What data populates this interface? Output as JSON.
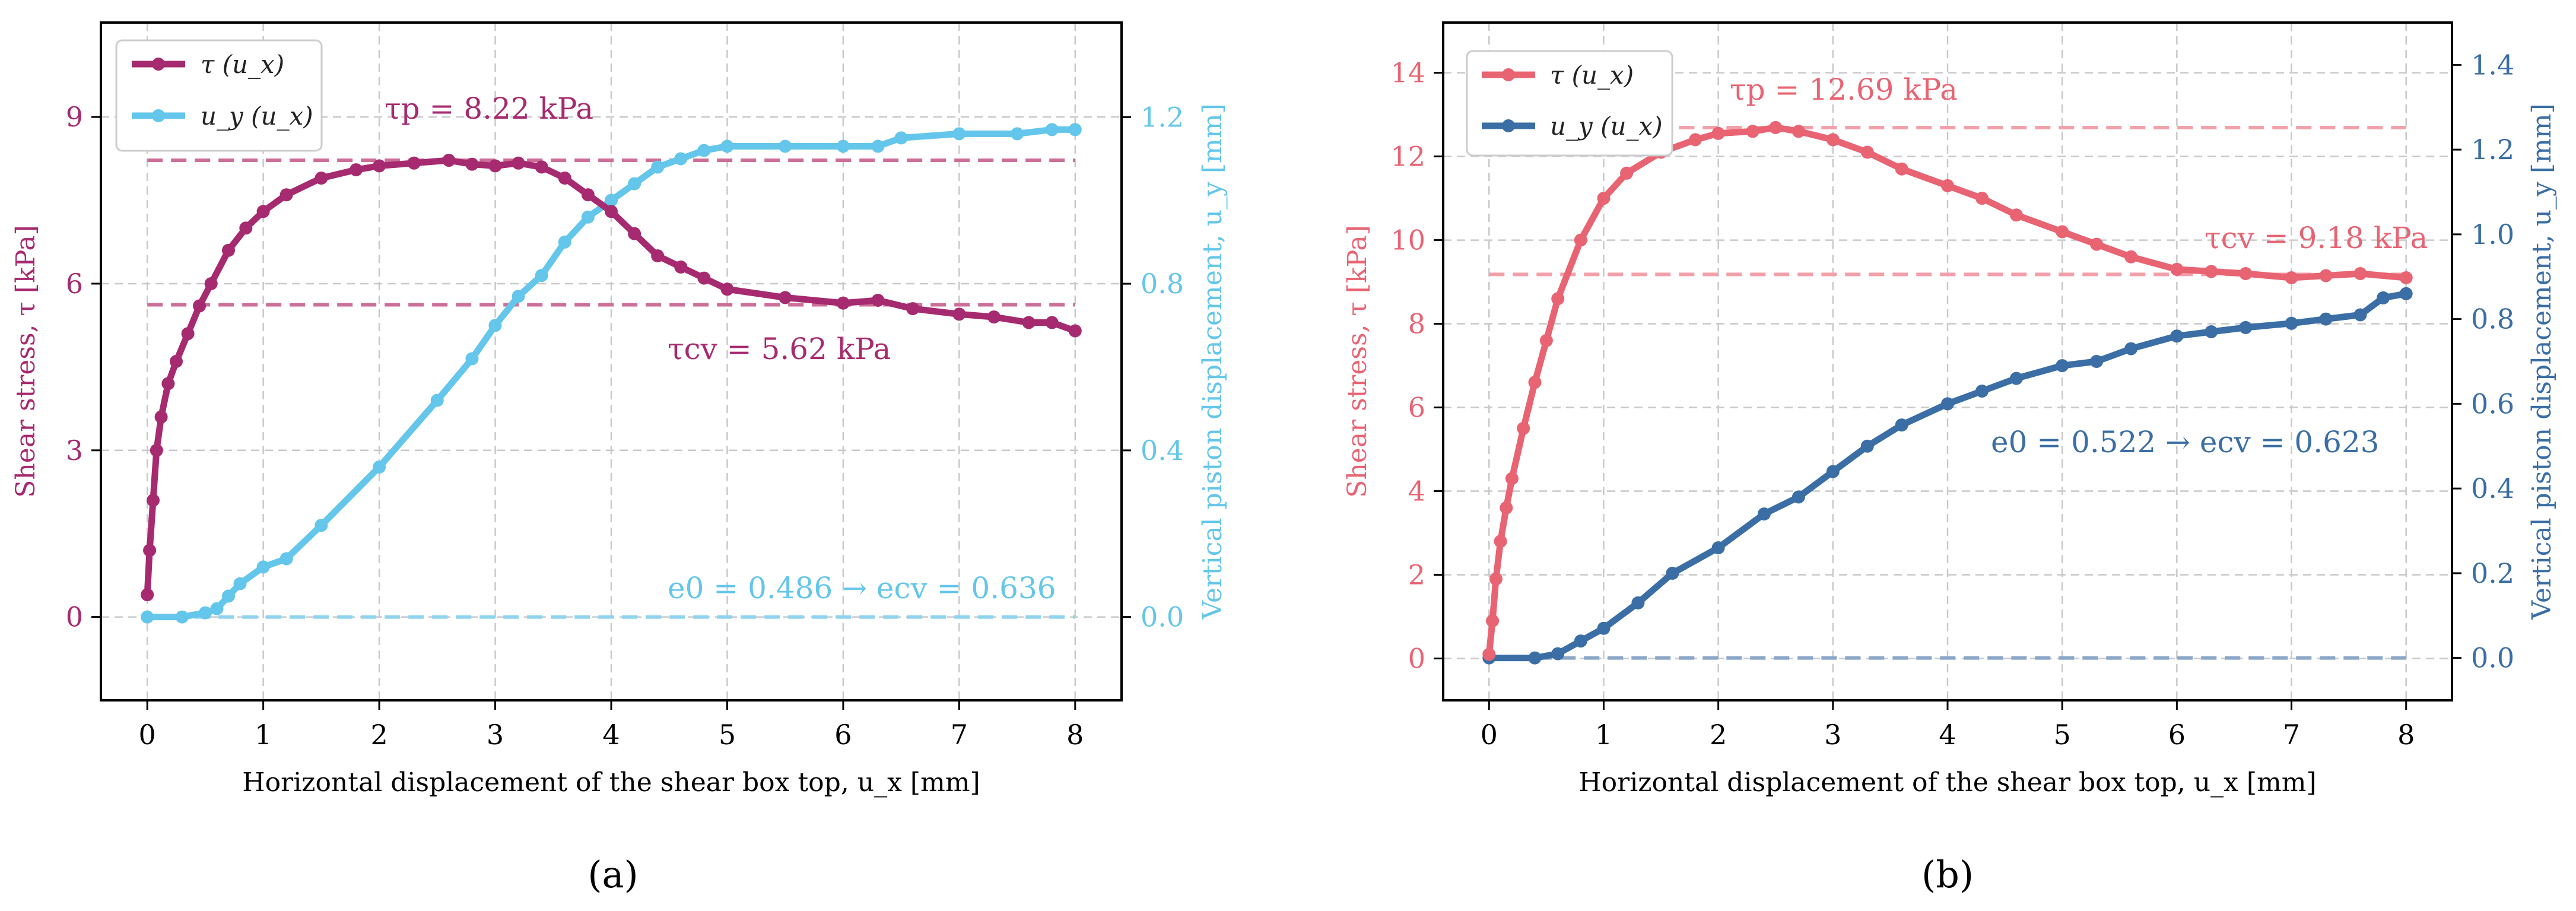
{
  "panel_captions": [
    "(a)",
    "(b)"
  ],
  "chart_data": [
    {
      "type": "line",
      "xlabel": "Horizontal displacement of the shear box top, u_x [mm]",
      "ylabel_left": "Shear stress, τ [kPa]",
      "ylabel_right": "Vertical piston displacement, u_y [mm]",
      "xlim": [
        -0.4,
        8.4
      ],
      "ylim_left": [
        -1.5,
        10.7
      ],
      "ylim_right": [
        -0.2,
        1.427
      ],
      "xticks": [
        0,
        1,
        2,
        3,
        4,
        5,
        6,
        7,
        8
      ],
      "yticks_left": [
        0,
        3,
        6,
        9
      ],
      "yticks_right": [
        0.0,
        0.4,
        0.8,
        1.2
      ],
      "ytick_labels_right": [
        "0.0",
        "0.4",
        "0.8",
        "1.2"
      ],
      "grid": true,
      "legend_position": "top-left",
      "colors": {
        "tau": "#a62a6f",
        "uy": "#63c6ea"
      },
      "series": [
        {
          "name": "τ (u_x)",
          "axis": "left",
          "x": [
            0,
            0.02,
            0.05,
            0.08,
            0.12,
            0.18,
            0.25,
            0.35,
            0.45,
            0.55,
            0.7,
            0.85,
            1.0,
            1.2,
            1.5,
            1.8,
            2.0,
            2.3,
            2.6,
            2.8,
            3.0,
            3.2,
            3.4,
            3.6,
            3.8,
            4.0,
            4.2,
            4.4,
            4.6,
            4.8,
            5.0,
            5.5,
            6.0,
            6.3,
            6.6,
            7.0,
            7.3,
            7.6,
            7.8,
            8.0
          ],
          "values": [
            0.4,
            1.2,
            2.1,
            3.0,
            3.6,
            4.2,
            4.6,
            5.1,
            5.6,
            6.0,
            6.6,
            7.0,
            7.3,
            7.6,
            7.9,
            8.05,
            8.12,
            8.17,
            8.22,
            8.15,
            8.12,
            8.17,
            8.1,
            7.9,
            7.6,
            7.3,
            6.9,
            6.5,
            6.3,
            6.1,
            5.9,
            5.75,
            5.65,
            5.7,
            5.55,
            5.45,
            5.4,
            5.3,
            5.3,
            5.15
          ]
        },
        {
          "name": "u_y (u_x)",
          "axis": "right",
          "x": [
            0,
            0.3,
            0.5,
            0.6,
            0.7,
            0.8,
            1.0,
            1.2,
            1.5,
            2.0,
            2.5,
            2.8,
            3.0,
            3.2,
            3.4,
            3.6,
            3.8,
            4.0,
            4.2,
            4.4,
            4.6,
            4.8,
            5.0,
            5.5,
            6.0,
            6.3,
            6.5,
            7.0,
            7.5,
            7.8,
            8.0
          ],
          "values": [
            0.0,
            0.0,
            0.01,
            0.02,
            0.05,
            0.08,
            0.12,
            0.14,
            0.22,
            0.36,
            0.52,
            0.62,
            0.7,
            0.77,
            0.82,
            0.9,
            0.96,
            1.0,
            1.04,
            1.08,
            1.1,
            1.12,
            1.13,
            1.13,
            1.13,
            1.13,
            1.15,
            1.16,
            1.16,
            1.17,
            1.17
          ]
        }
      ],
      "reference_lines": [
        {
          "axis": "left",
          "y": 8.22,
          "color": "#cc6f98"
        },
        {
          "axis": "left",
          "y": 5.62,
          "color": "#cc6f98"
        },
        {
          "axis": "right",
          "y": 0.0,
          "color": "#8fd3ef"
        }
      ],
      "annotations": [
        {
          "text": "τp = 8.22 kPa",
          "color": "#a62a6f"
        },
        {
          "text": "τcv = 5.62 kPa",
          "color": "#a62a6f"
        },
        {
          "text": "e0 = 0.486 → ecv = 0.636",
          "color": "#63c6ea"
        }
      ]
    },
    {
      "type": "line",
      "xlabel": "Horizontal displacement of the shear box top, u_x [mm]",
      "ylabel_left": "Shear stress, τ [kPa]",
      "ylabel_right": "Vertical piston displacement, u_y [mm]",
      "xlim": [
        -0.4,
        8.4
      ],
      "ylim_left": [
        -1.0,
        15.2
      ],
      "ylim_right": [
        -0.1,
        1.5
      ],
      "xticks": [
        0,
        1,
        2,
        3,
        4,
        5,
        6,
        7,
        8
      ],
      "yticks_left": [
        0,
        2,
        4,
        6,
        8,
        10,
        12,
        14
      ],
      "yticks_right": [
        0.0,
        0.2,
        0.4,
        0.6,
        0.8,
        1.0,
        1.2,
        1.4
      ],
      "ytick_labels_right": [
        "0.0",
        "0.2",
        "0.4",
        "0.6",
        "0.8",
        "1.0",
        "1.2",
        "1.4"
      ],
      "grid": true,
      "legend_position": "top-left",
      "colors": {
        "tau": "#e86473",
        "uy": "#3a6ea5"
      },
      "series": [
        {
          "name": "τ (u_x)",
          "axis": "left",
          "x": [
            0,
            0.03,
            0.06,
            0.1,
            0.15,
            0.2,
            0.3,
            0.4,
            0.5,
            0.6,
            0.8,
            1.0,
            1.2,
            1.5,
            1.8,
            2.0,
            2.3,
            2.5,
            2.7,
            3.0,
            3.3,
            3.6,
            4.0,
            4.3,
            4.6,
            5.0,
            5.3,
            5.6,
            6.0,
            6.3,
            6.6,
            7.0,
            7.3,
            7.6,
            8.0
          ],
          "values": [
            0.1,
            0.9,
            1.9,
            2.8,
            3.6,
            4.3,
            5.5,
            6.6,
            7.6,
            8.6,
            10.0,
            11.0,
            11.6,
            12.1,
            12.4,
            12.55,
            12.6,
            12.69,
            12.6,
            12.4,
            12.1,
            11.7,
            11.3,
            11.0,
            10.6,
            10.2,
            9.9,
            9.6,
            9.3,
            9.25,
            9.2,
            9.1,
            9.15,
            9.2,
            9.1
          ]
        },
        {
          "name": "u_y (u_x)",
          "axis": "right",
          "x": [
            0,
            0.4,
            0.6,
            0.8,
            1.0,
            1.3,
            1.6,
            2.0,
            2.4,
            2.7,
            3.0,
            3.3,
            3.6,
            4.0,
            4.3,
            4.6,
            5.0,
            5.3,
            5.6,
            6.0,
            6.3,
            6.6,
            7.0,
            7.3,
            7.6,
            7.8,
            8.0
          ],
          "values": [
            0.0,
            0.0,
            0.01,
            0.04,
            0.07,
            0.13,
            0.2,
            0.26,
            0.34,
            0.38,
            0.44,
            0.5,
            0.55,
            0.6,
            0.63,
            0.66,
            0.69,
            0.7,
            0.73,
            0.76,
            0.77,
            0.78,
            0.79,
            0.8,
            0.81,
            0.85,
            0.86
          ]
        }
      ],
      "reference_lines": [
        {
          "axis": "left",
          "y": 12.69,
          "color": "#f2a0aa"
        },
        {
          "axis": "left",
          "y": 9.18,
          "color": "#f2a0aa"
        },
        {
          "axis": "right",
          "y": 0.0,
          "color": "#8aa7c8"
        }
      ],
      "annotations": [
        {
          "text": "τp = 12.69 kPa",
          "color": "#e86473"
        },
        {
          "text": "τcv = 9.18 kPa",
          "color": "#e86473"
        },
        {
          "text": "e0 = 0.522 → ecv = 0.623",
          "color": "#3a6ea5"
        }
      ]
    }
  ]
}
